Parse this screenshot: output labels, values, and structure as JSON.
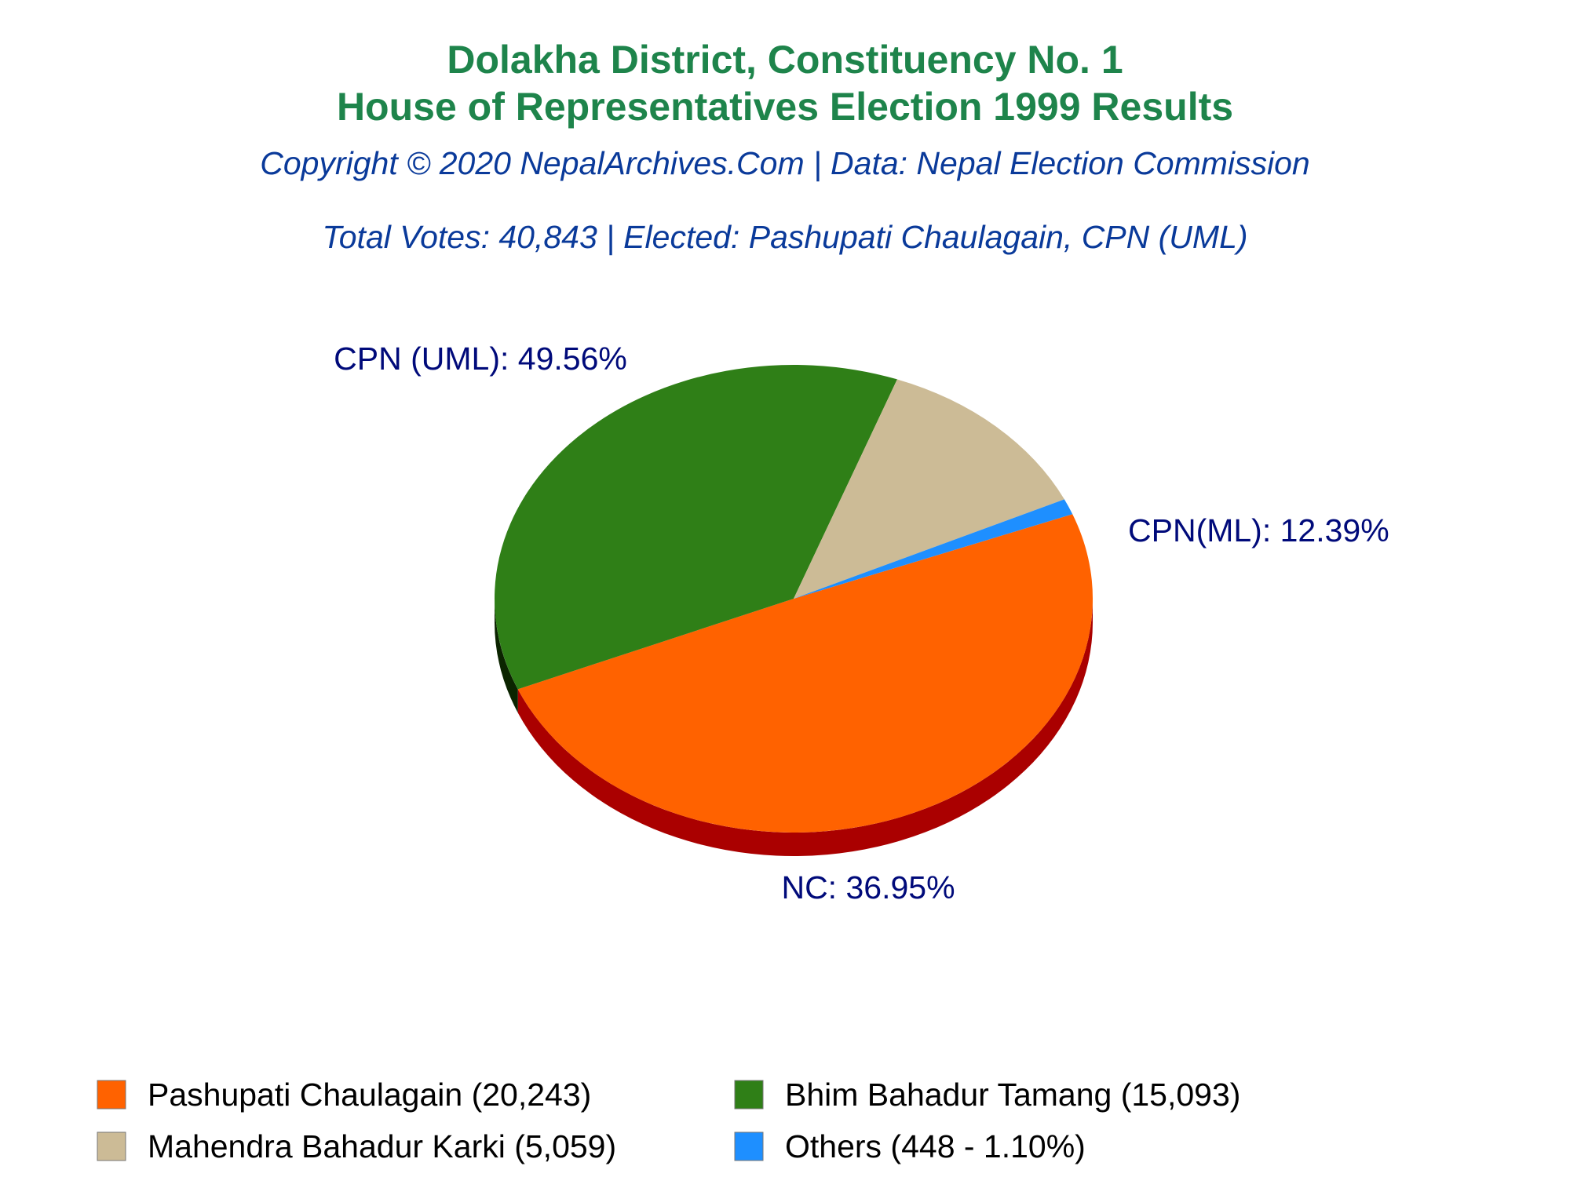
{
  "chart_data": {
    "type": "pie",
    "title": [
      "Dolakha District, Constituency No. 1",
      "House of Representatives Election 1999 Results"
    ],
    "subtitle": "Copyright © 2020 NepalArchives.Com | Data: Nepal Election Commission",
    "summary": "Total Votes: 40,843 | Elected: Pashupati Chaulagain, CPN (UML)",
    "slices": [
      {
        "label": "CPN (UML): 49.56%",
        "legend": "Pashupati Chaulagain (20,243)",
        "value": 20243,
        "color": "#ff6200",
        "side_color": "#aa0000"
      },
      {
        "label": "NC: 36.95%",
        "legend": "Bhim Bahadur Tamang (15,093)",
        "value": 15093,
        "color": "#2f7f17",
        "side_color": "#0b2400"
      },
      {
        "label": "CPN(ML): 12.39%",
        "legend": "Mahendra Bahadur Karki (5,059)",
        "value": 5059,
        "color": "#ccbb96",
        "side_color": "#8a7a5a"
      },
      {
        "label": "",
        "legend": "Others (448 - 1.10%)",
        "value": 448,
        "color": "#1e8fff",
        "side_color": "#0a4f99"
      }
    ],
    "legend_position": "bottom",
    "colors": {
      "title": "#1e844b",
      "subtitle": "#0a3a9a",
      "label": "#000a7a",
      "legend_text": "#000000"
    }
  }
}
